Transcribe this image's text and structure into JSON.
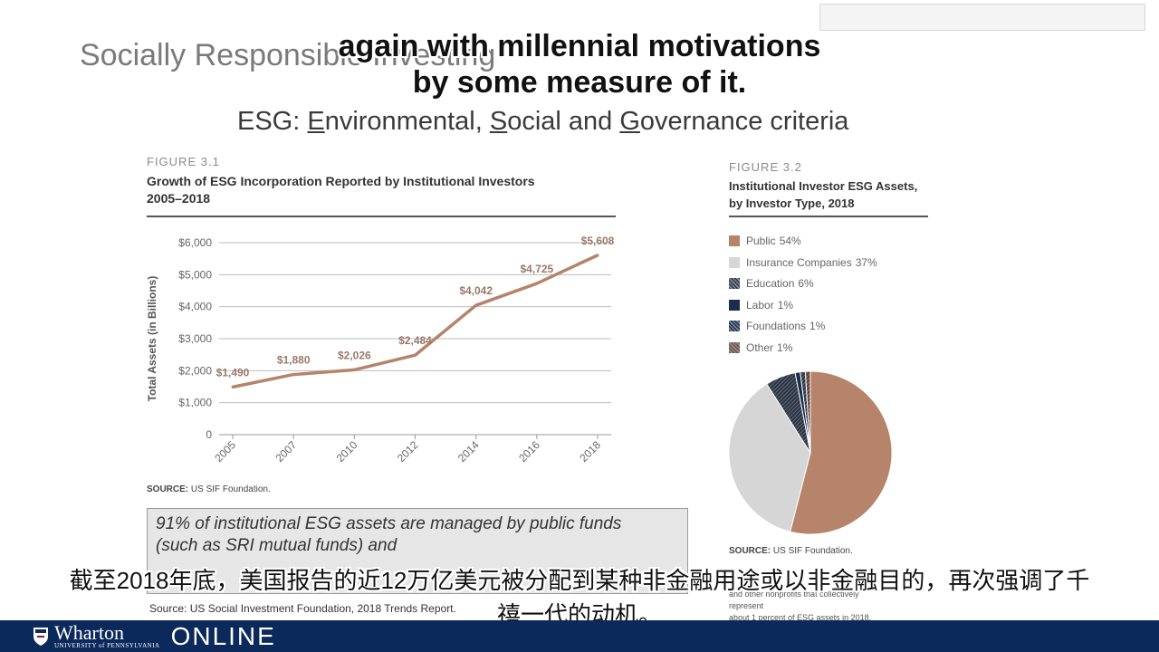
{
  "slide": {
    "title": "Socially Responsible Investing",
    "subtitle_parts": [
      "ESG:  ",
      "E",
      "nvironmental, ",
      "S",
      "ocial and ",
      "G",
      "overnance criteria"
    ]
  },
  "captions": {
    "english_line1": "again with millennial motivations",
    "english_line2": "by some measure of it.",
    "chinese_line1": "截至2018年底，美国报告的近12万亿美元被分配到某种非金融用途或以非金融目的，再次强调了千",
    "chinese_line2": "禧一代的动机。"
  },
  "figure_3_1": {
    "label": "FIGURE 3.1",
    "title_line1": "Growth of ESG Incorporation Reported by Institutional Investors",
    "title_line2": "2005–2018",
    "source_prefix": "SOURCE:",
    "source_text": " US SIF Foundation."
  },
  "figure_3_2": {
    "label": "FIGURE 3.2",
    "title_line1": "Institutional Investor ESG Assets,",
    "title_line2": "by Investor Type, 2018",
    "source_prefix": "SOURCE:",
    "source_text": " US SIF Foundation.",
    "note_line1": "and other nonprofits that collectively represent",
    "note_line2": "about 1 percent of ESG assets in 2018."
  },
  "callout": {
    "text": "91% of institutional ESG assets are managed by public funds (such as SRI mutual funds) and",
    "source": "Source: US Social Investment Foundation, 2018 Trends Report."
  },
  "footer": {
    "brand_name": "Wharton",
    "brand_univ": "UNIVERSITY of PENNSYLVANIA",
    "brand_online": "ONLINE"
  },
  "colors": {
    "line_series": "#b5846a",
    "footer": "#0b2a5b"
  },
  "chart_data": [
    {
      "type": "line",
      "title": "Growth of ESG Incorporation Reported by Institutional Investors 2005–2018",
      "xlabel": "",
      "ylabel": "Total Assets (in Billions)",
      "x_ticks": [
        "2005",
        "2007",
        "2010",
        "2012",
        "2014",
        "2016",
        "2018"
      ],
      "y_ticks": [
        "$6,000",
        "$5,000",
        "$4,000",
        "$3,000",
        "$2,000",
        "$1,000",
        "0"
      ],
      "ylim": [
        0,
        6000
      ],
      "grid": true,
      "points": [
        {
          "x": "2005",
          "y": 1490,
          "label": "$1,490"
        },
        {
          "x": "2007",
          "y": 1880,
          "label": "$1,880"
        },
        {
          "x": "2010",
          "y": 2026,
          "label": "$2,026"
        },
        {
          "x": "2012",
          "y": 2484,
          "label": "$2,484"
        },
        {
          "x": "2014",
          "y": 4042,
          "label": "$4,042"
        },
        {
          "x": "2016",
          "y": 4725,
          "label": "$4,725"
        },
        {
          "x": "2018",
          "y": 5608,
          "label": "$5,608"
        }
      ]
    },
    {
      "type": "pie",
      "title": "Institutional Investor ESG Assets, by Investor Type, 2018",
      "slices": [
        {
          "name": "Public",
          "pct_label": "54%",
          "value": 54,
          "color": "#b5846a",
          "pattern": "solid"
        },
        {
          "name": "Insurance Companies",
          "pct_label": "37%",
          "value": 37,
          "color": "#d6d6d6",
          "pattern": "solid"
        },
        {
          "name": "Education",
          "pct_label": "6%",
          "value": 6,
          "color": "#3c4655",
          "pattern": "hatch"
        },
        {
          "name": "Labor",
          "pct_label": "1%",
          "value": 1,
          "color": "#1b2d4d",
          "pattern": "solid"
        },
        {
          "name": "Foundations",
          "pct_label": "1%",
          "value": 1,
          "color": "#2c3e5e",
          "pattern": "hatch"
        },
        {
          "name": "Other",
          "pct_label": "1%",
          "value": 1,
          "color": "#7a5a4c",
          "pattern": "hatch"
        }
      ]
    }
  ]
}
